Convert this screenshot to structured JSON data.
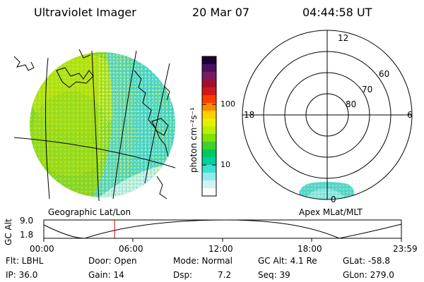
{
  "header": {
    "title": "Ultraviolet Imager",
    "date": "20 Mar 07",
    "time": "04:44:58 UT"
  },
  "colorbar": {
    "unit_label": "photon cm⁻²s⁻¹",
    "ticks": [
      "100",
      "10"
    ],
    "colors": [
      "#1a0033",
      "#4a1060",
      "#7a1a60",
      "#a01030",
      "#d01818",
      "#ff3c00",
      "#ff8a00",
      "#ffd000",
      "#e6f000",
      "#b8f000",
      "#80e000",
      "#40d030",
      "#00c860",
      "#00d0a0",
      "#40e0d0",
      "#90ecec",
      "#d0f4f4",
      "#ffffff"
    ]
  },
  "geo_panel": {
    "label": "Geographic Lat/Lon",
    "colors": {
      "green": "#7ed321",
      "yellow": "#c8e600",
      "teal": "#4fd6c8",
      "pale": "#bfefec"
    }
  },
  "polar_panel": {
    "label": "Apex MLat/MLT",
    "mlt_labels": [
      "12",
      "18",
      "6",
      "0"
    ],
    "lat_labels": [
      "60",
      "70",
      "80"
    ]
  },
  "altitude_plot": {
    "ylabel": "GC Alt",
    "yticks": [
      "9.0",
      "1.8"
    ],
    "xticks": [
      "00:00",
      "06:00",
      "12:00",
      "18:00",
      "23:59"
    ],
    "cursor_hour": 4.75,
    "cursor_color": "#d00000"
  },
  "info": {
    "flt": "Flt: LBHL",
    "door": "Door: Open",
    "mode": "Mode: Normal",
    "gcalt": "GC Alt: 4.1 Re",
    "glat": "GLat: -58.8",
    "ip": "IP: 36.0",
    "gain": "Gain: 14",
    "dsp_label": "Dsp:",
    "dsp_value": "7.2",
    "seq": "Seq: 39",
    "glon": "GLon: 279.0"
  }
}
